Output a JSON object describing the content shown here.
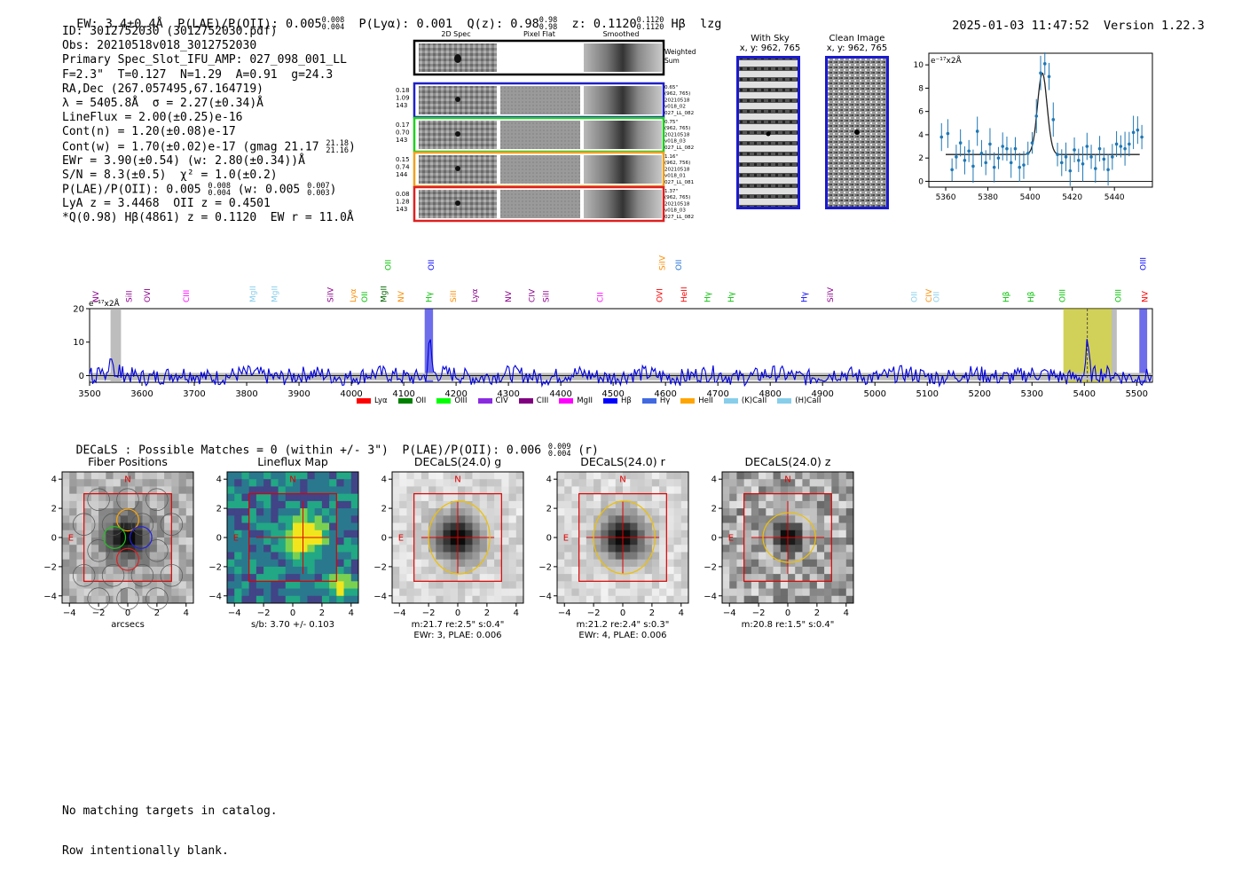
{
  "header": {
    "ew": "EW: 3.4±0.4Å",
    "plae_label": "P(LAE)/P(OII): 0.005",
    "plae_hi": "0.008",
    "plae_lo": "0.004",
    "plya": "P(Lyα): 0.001",
    "qz_label": "Q(z): 0.98",
    "qz_hi": "0.98",
    "qz_lo": "0.98",
    "z_label": "z: 0.1120",
    "z_hi": "0.1120",
    "z_lo": "0.1120",
    "line_name": "Hβ",
    "lzg": "lzg",
    "timestamp": "2025-01-03 11:47:52",
    "version": "Version 1.22.3"
  },
  "info": {
    "id": "ID: 3012752030 (3012752030.pdf)",
    "obs": "Obs: 20210518v018_3012752030",
    "primary": "Primary Spec_Slot_IFU_AMP: 027_098_001_LL",
    "fta": "F=2.3\"  T=0.127  N=1.29  A=0.91  g=24.3",
    "radec": "RA,Dec (267.057495,67.164719)",
    "lambda": "λ = 5405.8Å  σ = 2.27(±0.34)Å",
    "lineflux": "LineFlux = 2.00(±0.25)e-16",
    "contn": "Cont(n) = 1.20(±0.08)e-17",
    "contw": "Cont(w) = 1.70(±0.02)e-17 (gmag 21.17",
    "contw_hi": "21.18",
    "contw_lo": "21.16",
    "contw_end": ")",
    "ewr": "EWr = 3.90(±0.54) (w: 2.80(±0.34))Å",
    "sn": "S/N = 8.3(±0.5)  χ² = 1.0(±0.2)",
    "plae": "P(LAE)/P(OII): 0.005",
    "plae_hi": "0.008",
    "plae_lo": "0.004",
    "plae_w": "(w: 0.005",
    "plae_w_hi": "0.007",
    "plae_w_lo": "0.003",
    "plae_w_end": ")",
    "lya_oii": "LyA z = 3.4468  OII z = 0.4501",
    "q_line": "*Q(0.98) Hβ(4861) z = 0.1120  EW r = 11.0Å"
  },
  "cutouts": {
    "col_2d": "2D Spec",
    "col_flat": "Pixel Flat",
    "col_smooth": "Smoothed",
    "weighted_a": "Weighted",
    "weighted_b": "Sum",
    "rows": [
      {
        "color": "#2020c8",
        "left": [
          "0.18",
          "1.09",
          "143"
        ],
        "right": [
          "0.65\"",
          "(962, 765)",
          "20210518",
          "v018_02",
          "027_LL_082"
        ]
      },
      {
        "color": "#20d020",
        "left": [
          "0.17",
          "0.70",
          "143"
        ],
        "right": [
          "0.75\"",
          "(962, 765)",
          "20210518",
          "v018_03",
          "027_LL_082"
        ]
      },
      {
        "color": "#f0a020",
        "left": [
          "0.15",
          "0.74",
          "144"
        ],
        "right": [
          "1.16\"",
          "(962, 756)",
          "20210518",
          "v018_01",
          "027_LL_081"
        ]
      },
      {
        "color": "#e02020",
        "left": [
          "0.08",
          "1.28",
          "143"
        ],
        "right": [
          "1.37\"",
          "(962, 765)",
          "20210518",
          "v018_03",
          "027_LL_082"
        ]
      }
    ]
  },
  "sky": {
    "with_sky_title": "With Sky",
    "with_sky_xy": "x, y: 962, 765",
    "clean_title": "Clean Image",
    "clean_xy": "x, y: 962, 765"
  },
  "zoom_chart": {
    "ylabel": "e⁻¹⁷x2Å",
    "xticks": [
      "5360",
      "5380",
      "5400",
      "5420",
      "5440"
    ],
    "yticks": [
      "0",
      "2",
      "4",
      "6",
      "8",
      "10"
    ]
  },
  "main_chart": {
    "ylabel": "e⁻¹⁷x2Å",
    "xticks": [
      "3500",
      "3600",
      "3700",
      "3800",
      "3900",
      "4000",
      "4100",
      "4200",
      "4300",
      "4400",
      "4500",
      "4600",
      "4700",
      "4800",
      "4900",
      "5000",
      "5100",
      "5200",
      "5300",
      "5400",
      "5500"
    ],
    "yticks": [
      "0",
      "10",
      "20"
    ],
    "line_labels": [
      {
        "w": 3512,
        "t": "NV",
        "c": "#8b008b"
      },
      {
        "w": 3575,
        "t": "SiII",
        "c": "#8b008b"
      },
      {
        "w": 3610,
        "t": "OVI",
        "c": "#8b008b"
      },
      {
        "w": 3685,
        "t": "CIII",
        "c": "#ff00ff"
      },
      {
        "w": 3812,
        "t": "MgII",
        "c": "#87ceeb"
      },
      {
        "w": 3853,
        "t": "MgII",
        "c": "#87ceeb"
      },
      {
        "w": 3960,
        "t": "SiIV",
        "c": "#8b008b"
      },
      {
        "w": 4003,
        "t": "Lyα",
        "c": "#ff8c00"
      },
      {
        "w": 4025,
        "t": "OII",
        "c": "#00c000"
      },
      {
        "w": 4062,
        "t": "MgII",
        "c": "#006400"
      },
      {
        "w": 4095,
        "t": "NV",
        "c": "#ff8c00"
      },
      {
        "w": 4148,
        "t": "Hγ",
        "c": "#00c000"
      },
      {
        "w": 4195,
        "t": "SiII",
        "c": "#ff8c00"
      },
      {
        "w": 4235,
        "t": "Lyα",
        "c": "#8b008b"
      },
      {
        "w": 4300,
        "t": "NV",
        "c": "#8b008b"
      },
      {
        "w": 4345,
        "t": "CIV",
        "c": "#8b008b"
      },
      {
        "w": 4372,
        "t": "SiII",
        "c": "#8b008b"
      },
      {
        "w": 4475,
        "t": "CII",
        "c": "#ff00ff"
      },
      {
        "w": 4589,
        "t": "OVI",
        "c": "#ff0000"
      },
      {
        "w": 4635,
        "t": "HeII",
        "c": "#ff0000"
      },
      {
        "w": 4680,
        "t": "Hγ",
        "c": "#00c000"
      },
      {
        "w": 4725,
        "t": "Hγ",
        "c": "#00c000"
      },
      {
        "w": 4865,
        "t": "Hγ",
        "c": "#0000ff"
      },
      {
        "w": 4915,
        "t": "SiIV",
        "c": "#8b008b"
      },
      {
        "w": 5075,
        "t": "OII",
        "c": "#87ceeb"
      },
      {
        "w": 5103,
        "t": "CIV",
        "c": "#ff8c00"
      },
      {
        "w": 5117,
        "t": "OII",
        "c": "#87ceeb"
      },
      {
        "w": 5250,
        "t": "Hβ",
        "c": "#00c000"
      },
      {
        "w": 5298,
        "t": "Hβ",
        "c": "#00c000"
      },
      {
        "w": 5358,
        "t": "OIII",
        "c": "#00c000"
      },
      {
        "w": 5465,
        "t": "OIII",
        "c": "#00c000"
      },
      {
        "w": 5516,
        "t": "NV",
        "c": "#ff0000"
      }
    ],
    "top_labels": [
      {
        "w": 4070,
        "t": "OII",
        "c": "#00c000"
      },
      {
        "w": 4152,
        "t": "OII",
        "c": "#0000ff"
      },
      {
        "w": 4594,
        "t": "SiIV",
        "c": "#ff8c00"
      },
      {
        "w": 4625,
        "t": "OII",
        "c": "#1e6fd9"
      },
      {
        "w": 5512,
        "t": "OIII",
        "c": "#0000ff"
      }
    ]
  },
  "legend": [
    {
      "label": "Lyα",
      "color": "#ff0000"
    },
    {
      "label": "OII",
      "color": "#008000"
    },
    {
      "label": "OIII",
      "color": "#00ff00"
    },
    {
      "label": "CIV",
      "color": "#8a2be2"
    },
    {
      "label": "CIII",
      "color": "#800080"
    },
    {
      "label": "MgII",
      "color": "#ff00ff"
    },
    {
      "label": "Hβ",
      "color": "#0000ff"
    },
    {
      "label": "Hγ",
      "color": "#4169e1"
    },
    {
      "label": "HeII",
      "color": "#ffa500"
    },
    {
      "label": "(K)CaII",
      "color": "#87ceeb"
    },
    {
      "label": "(H)CaII",
      "color": "#87ceeb"
    }
  ],
  "decals": {
    "header": "DECaLS : Possible Matches = 0 (within +/- 3\")  P(LAE)/P(OII): 0.006",
    "hi": "0.009",
    "lo": "0.004",
    "band": "(r)"
  },
  "thumbs": [
    {
      "title": "Fiber Positions",
      "cap1": "arcsecs",
      "cap2": ""
    },
    {
      "title": "Lineflux Map",
      "cap1": "s/b: 3.70 +/- 0.103",
      "cap2": ""
    },
    {
      "title": "DECaLS(24.0) g",
      "cap1": "m:21.7  re:2.5\"  s:0.4\"",
      "cap2": "EWr: 3, PLAE: 0.006"
    },
    {
      "title": "DECaLS(24.0) r",
      "cap1": "m:21.2  re:2.4\"  s:0.3\"",
      "cap2": "EWr: 4, PLAE: 0.006"
    },
    {
      "title": "DECaLS(24.0) z",
      "cap1": "m:20.8  re:1.5\"  s:0.4\"",
      "cap2": ""
    }
  ],
  "thumb_ticks": [
    "−4",
    "−2",
    "0",
    "2",
    "4"
  ],
  "thumb_n": "N",
  "thumb_e": "E",
  "footer": {
    "line1": "No matching targets in catalog.",
    "line2": "Row intentionally blank."
  },
  "chart_data": [
    {
      "type": "line",
      "title": "",
      "xlabel": "",
      "ylabel": "e⁻¹⁷x2Å",
      "xlim": [
        3500,
        5530
      ],
      "ylim": [
        -2,
        20
      ],
      "note": "full spectrum; noise ~3 around 0, emission peak ~9 at 5405.8",
      "emission": [
        {
          "x": 5405.8,
          "y": 9
        },
        {
          "x": 4150,
          "y": 10
        }
      ],
      "highlight_bands": [
        [
          3540,
          3560,
          "#999"
        ],
        [
          4140,
          4156,
          "#2020e0"
        ],
        [
          5360,
          5452,
          "#b8b800"
        ],
        [
          5452,
          5462,
          "#999"
        ],
        [
          5505,
          5520,
          "#2020e0"
        ]
      ]
    },
    {
      "type": "scatter",
      "title": "",
      "ylabel": "e⁻¹⁷x2Å",
      "xlim": [
        5352,
        5458
      ],
      "ylim": [
        -0.5,
        11
      ],
      "x": [
        5358,
        5361,
        5363,
        5365,
        5367,
        5369,
        5371,
        5373,
        5375,
        5377,
        5379,
        5381,
        5383,
        5385,
        5387,
        5389,
        5391,
        5393,
        5395,
        5397,
        5399,
        5401,
        5403,
        5405,
        5407,
        5409,
        5411,
        5413,
        5415,
        5417,
        5419,
        5421,
        5423,
        5425,
        5427,
        5429,
        5431,
        5433,
        5435,
        5437,
        5439,
        5441,
        5443,
        5445,
        5447,
        5449,
        5451,
        5453
      ],
      "y": [
        3.8,
        4.1,
        1.0,
        2.1,
        3.3,
        1.8,
        2.6,
        1.3,
        4.3,
        2.4,
        1.6,
        3.2,
        1.2,
        2.0,
        3.0,
        2.8,
        1.6,
        2.8,
        1.2,
        1.4,
        2.4,
        3.3,
        5.6,
        9.3,
        10.1,
        9.0,
        5.3,
        2.3,
        1.6,
        2.1,
        0.9,
        2.7,
        1.8,
        1.5,
        3.0,
        2.1,
        1.1,
        2.8,
        1.9,
        1.0,
        2.1,
        3.2,
        3.0,
        2.8,
        3.2,
        4.2,
        4.4,
        3.8
      ],
      "model_baseline": 2.3,
      "model_peak_x": 5405.8,
      "model_peak_y": 9.3,
      "model_sigma": 2.27
    }
  ]
}
